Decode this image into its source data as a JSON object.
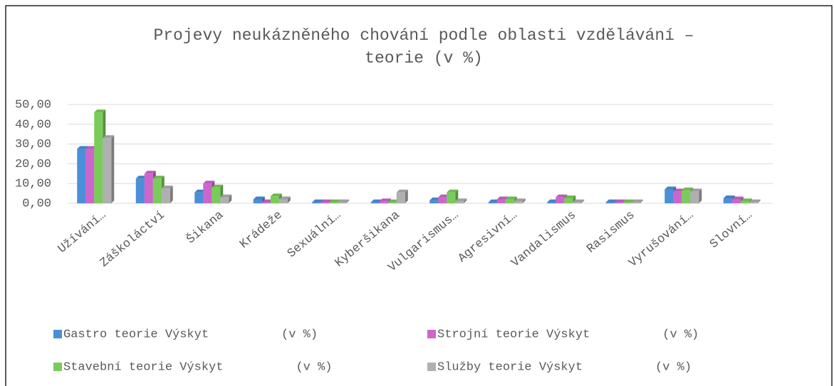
{
  "chart_data": {
    "type": "bar3d",
    "title": "Projevy neukázněného chování podle oblasti vzdělávání – teorie (v %)",
    "categories": [
      "Užívání…",
      "Záškoláctví",
      "Šikana",
      "Krádeže",
      "Sexuální…",
      "Kyberšikana",
      "Vulgarismus…",
      "Agresivní…",
      "Vandalismus",
      "Rasismus",
      "Vyrušování…",
      "Slovní…"
    ],
    "series": [
      {
        "name": "Gastro teorie Výskyt          (v %)",
        "color": "#4a8fd8",
        "values": [
          27.5,
          12.5,
          5.5,
          2,
          0.5,
          0.5,
          1.5,
          0.5,
          0.5,
          0.5,
          7,
          2.5
        ]
      },
      {
        "name": "Strojní teorie Výskyt          (v %)",
        "color": "#cc66cc",
        "values": [
          27.5,
          15,
          10,
          0.5,
          0.5,
          1,
          3,
          2,
          3,
          0.5,
          6,
          2
        ]
      },
      {
        "name": "Stavební teorie Výskyt          (v %)",
        "color": "#7acc5a",
        "values": [
          46,
          12.5,
          8,
          3.5,
          0.5,
          0.5,
          5.5,
          2,
          2.5,
          0.5,
          6.5,
          1
        ]
      },
      {
        "name": "Služby teorie Výskyt          (v %)",
        "color": "#b0b0b0",
        "values": [
          33,
          7.5,
          3,
          2,
          0.5,
          5.5,
          1,
          1,
          0.5,
          0.5,
          6,
          0.5
        ]
      }
    ],
    "ylim": [
      0,
      50
    ],
    "yticks": [
      {
        "value": 0,
        "label": "0,00"
      },
      {
        "value": 10,
        "label": "10,00"
      },
      {
        "value": 20,
        "label": "20,00"
      },
      {
        "value": 30,
        "label": "30,00"
      },
      {
        "value": 40,
        "label": "40,00"
      },
      {
        "value": 50,
        "label": "50,00"
      }
    ],
    "grid": true
  }
}
